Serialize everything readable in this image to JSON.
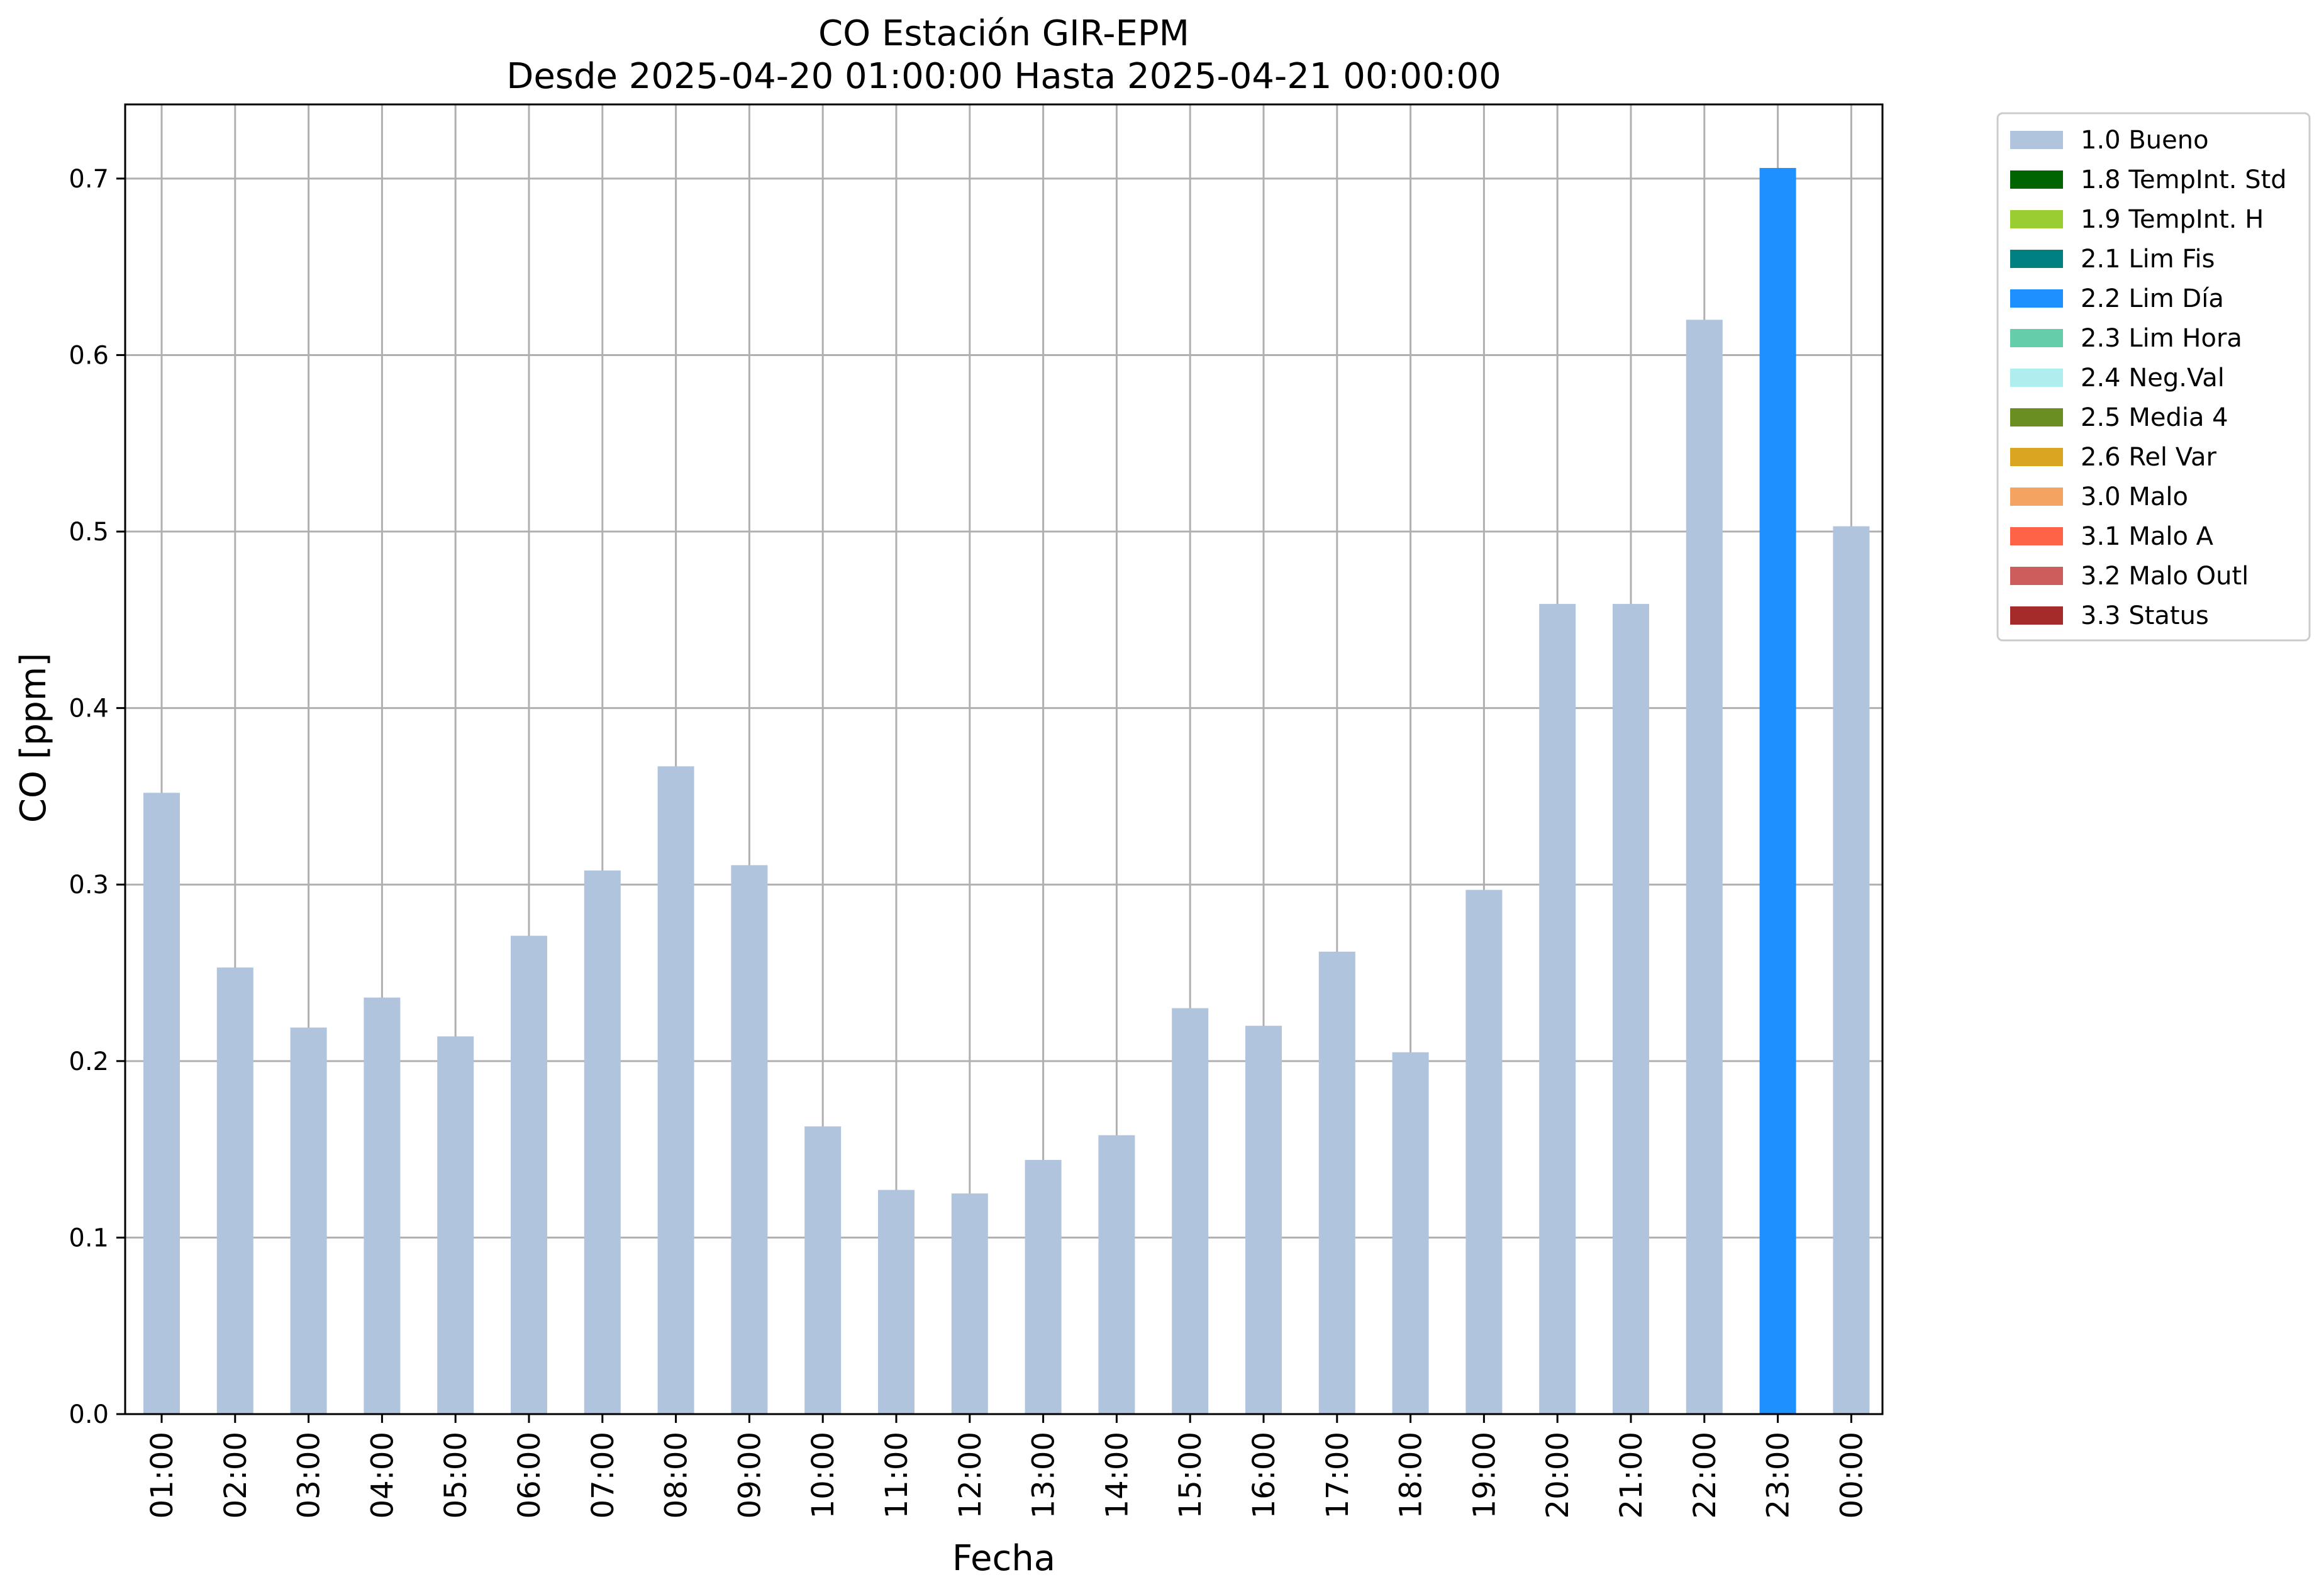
{
  "chart_data": {
    "type": "bar",
    "title": "CO Estación GIR-EPM",
    "subtitle": "Desde 2025-04-20 01:00:00 Hasta 2025-04-21 00:00:00",
    "xlabel": "Fecha",
    "ylabel": "CO [ppm]",
    "ylim": [
      0,
      0.742
    ],
    "yticks": [
      0.0,
      0.1,
      0.2,
      0.3,
      0.4,
      0.5,
      0.6,
      0.7
    ],
    "ytick_labels": [
      "0.0",
      "0.1",
      "0.2",
      "0.3",
      "0.4",
      "0.5",
      "0.6",
      "0.7"
    ],
    "grid": true,
    "legend_position": "outside-top-right",
    "categories": [
      "01:00",
      "02:00",
      "03:00",
      "04:00",
      "05:00",
      "06:00",
      "07:00",
      "08:00",
      "09:00",
      "10:00",
      "11:00",
      "12:00",
      "13:00",
      "14:00",
      "15:00",
      "16:00",
      "17:00",
      "18:00",
      "19:00",
      "20:00",
      "21:00",
      "22:00",
      "23:00",
      "00:00"
    ],
    "values": [
      0.352,
      0.253,
      0.219,
      0.236,
      0.214,
      0.271,
      0.308,
      0.367,
      0.311,
      0.163,
      0.127,
      0.125,
      0.144,
      0.158,
      0.23,
      0.22,
      0.262,
      0.205,
      0.297,
      0.459,
      0.459,
      0.62,
      0.706,
      0.503
    ],
    "bar_flags": [
      "1.0 Bueno",
      "1.0 Bueno",
      "1.0 Bueno",
      "1.0 Bueno",
      "1.0 Bueno",
      "1.0 Bueno",
      "1.0 Bueno",
      "1.0 Bueno",
      "1.0 Bueno",
      "1.0 Bueno",
      "1.0 Bueno",
      "1.0 Bueno",
      "1.0 Bueno",
      "1.0 Bueno",
      "1.0 Bueno",
      "1.0 Bueno",
      "1.0 Bueno",
      "1.0 Bueno",
      "1.0 Bueno",
      "1.0 Bueno",
      "1.0 Bueno",
      "1.0 Bueno",
      "2.2 Lim Día",
      "1.0 Bueno"
    ],
    "legend": [
      {
        "label": "1.0 Bueno",
        "color": "#b0c4de"
      },
      {
        "label": "1.8 TempInt. Std",
        "color": "#006400"
      },
      {
        "label": "1.9 TempInt. H",
        "color": "#9acd32"
      },
      {
        "label": "2.1 Lim Fis",
        "color": "#008080"
      },
      {
        "label": "2.2 Lim Día",
        "color": "#1e90ff"
      },
      {
        "label": "2.3 Lim Hora",
        "color": "#66cdaa"
      },
      {
        "label": "2.4 Neg.Val",
        "color": "#afeeee"
      },
      {
        "label": "2.5 Media 4",
        "color": "#6b8e23"
      },
      {
        "label": "2.6 Rel Var",
        "color": "#daa520"
      },
      {
        "label": "3.0 Malo",
        "color": "#f4a460"
      },
      {
        "label": "3.1 Malo A",
        "color": "#ff6347"
      },
      {
        "label": "3.2 Malo Outl",
        "color": "#cd5c5c"
      },
      {
        "label": "3.3 Status",
        "color": "#a52a2a"
      }
    ]
  }
}
